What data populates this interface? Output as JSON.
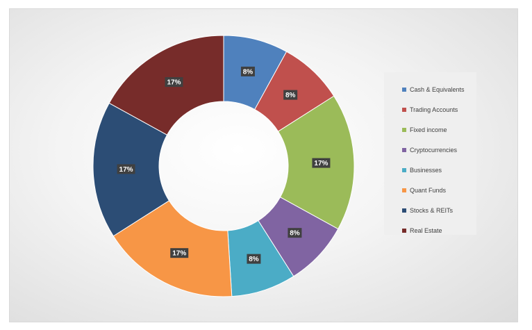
{
  "chart_data": {
    "type": "pie",
    "subtype": "donut",
    "title": "",
    "start_angle_deg": 0,
    "legend_position": "right",
    "data_label_format": "percent",
    "slices": [
      {
        "label": "Cash & Equivalents",
        "value": 8,
        "display": "8%",
        "color": "#4f81bd"
      },
      {
        "label": "Trading Accounts",
        "value": 8,
        "display": "8%",
        "color": "#c0504d"
      },
      {
        "label": "Fixed income",
        "value": 17,
        "display": "17%",
        "color": "#9bbb59"
      },
      {
        "label": "Cryptocurrencies",
        "value": 8,
        "display": "8%",
        "color": "#8064a2"
      },
      {
        "label": "Businesses",
        "value": 8,
        "display": "8%",
        "color": "#4bacc6"
      },
      {
        "label": "Quant Funds",
        "value": 17,
        "display": "17%",
        "color": "#f79646"
      },
      {
        "label": "Stocks & REITs",
        "value": 17,
        "display": "17%",
        "color": "#2c4d75"
      },
      {
        "label": "Real Estate",
        "value": 17,
        "display": "17%",
        "color": "#772c2a"
      }
    ]
  }
}
